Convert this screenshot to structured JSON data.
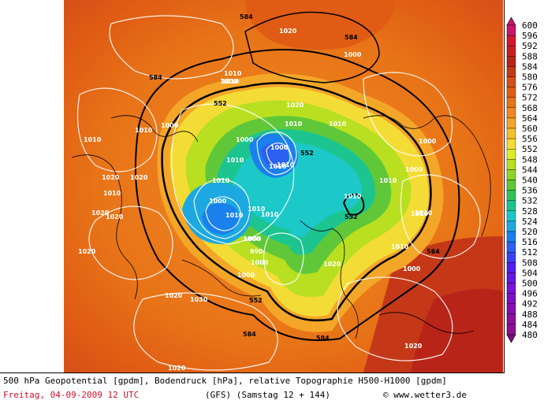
{
  "title": "500 hPa Geopotential [gpdm], Bodendruck [hPa], relative Topographie H500-H1000 [gpdm]",
  "date_line": "Freitag, 04-09-2009  12 UTC",
  "model_line": "(GFS)  (Samstag 12 + 144)",
  "copyright": "© www.wetter3.de",
  "legend": {
    "values": [
      "600",
      "596",
      "592",
      "588",
      "584",
      "580",
      "576",
      "572",
      "568",
      "564",
      "560",
      "556",
      "552",
      "548",
      "544",
      "540",
      "536",
      "532",
      "528",
      "524",
      "520",
      "516",
      "512",
      "508",
      "504",
      "500",
      "496",
      "492",
      "488",
      "484",
      "480"
    ],
    "colors": [
      "#c8176e",
      "#d11733",
      "#c82020",
      "#b82418",
      "#c43818",
      "#d45018",
      "#e05c14",
      "#e87418",
      "#f08a20",
      "#f4a628",
      "#f4c030",
      "#f4dc36",
      "#dcec28",
      "#b8e020",
      "#90d426",
      "#60c838",
      "#30c458",
      "#1cc490",
      "#1cc8c8",
      "#1ca8e0",
      "#1a80ec",
      "#2c60f0",
      "#3c40f0",
      "#5020ec",
      "#6418e0",
      "#7414d4",
      "#7c10c4",
      "#8410b4",
      "#8c109c",
      "#8c1090",
      "#7a0e80"
    ],
    "arrow_top_color": "#c8176e",
    "arrow_bottom_color": "#7a0e80"
  },
  "map": {
    "pressure_labels": [
      "1020",
      "1000",
      "1010",
      "1000",
      "1010",
      "1000",
      "1010",
      "1020",
      "1010",
      "1010",
      "1020",
      "1010",
      "1000",
      "1020",
      "1010",
      "1000",
      "1010",
      "1010",
      "1010",
      "1020",
      "1010",
      "1020",
      "1020",
      "1030",
      "1020",
      "1000",
      "1010",
      "1010",
      "1010",
      "1000",
      "1010",
      "1020",
      "1010",
      "1020",
      "1020",
      "1000",
      "990",
      "1000",
      "1010",
      "1000",
      "1000",
      "1000",
      "1000",
      "1010",
      "1010"
    ],
    "geopotential_labels": [
      "584",
      "584",
      "584",
      "552",
      "552",
      "552",
      "552",
      "584",
      "584",
      "584"
    ]
  }
}
